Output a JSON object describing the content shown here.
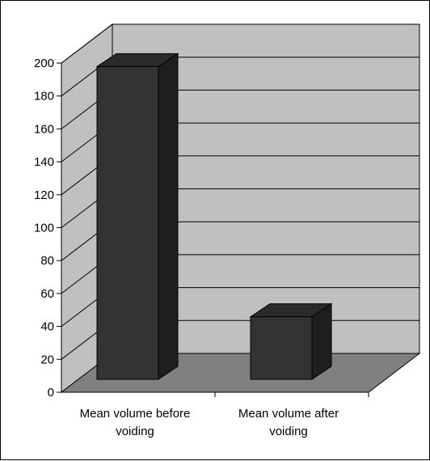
{
  "chart_data": {
    "type": "bar",
    "style": "3d",
    "categories": [
      [
        "Mean volume before",
        "voiding"
      ],
      [
        "Mean volume after",
        "voiding"
      ]
    ],
    "values": [
      190,
      38
    ],
    "ylim": [
      0,
      200
    ],
    "yticks": [
      "0",
      "20",
      "40",
      "60",
      "80",
      "100",
      "120",
      "140",
      "160",
      "180",
      "200"
    ],
    "title": "",
    "xlabel": "",
    "ylabel": "",
    "grid": true,
    "legend": false,
    "colors": {
      "bar_front": "#333333",
      "bar_side": "#1e1e1e",
      "bar_top": "#2b2b2b",
      "back_wall": "#c0c0c0",
      "side_wall": "#c0c0c0",
      "floor": "#808080",
      "gridline": "#000000"
    }
  }
}
